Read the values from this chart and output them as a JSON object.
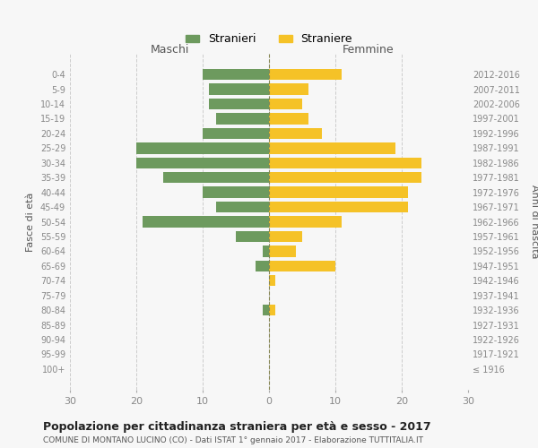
{
  "age_groups": [
    "100+",
    "95-99",
    "90-94",
    "85-89",
    "80-84",
    "75-79",
    "70-74",
    "65-69",
    "60-64",
    "55-59",
    "50-54",
    "45-49",
    "40-44",
    "35-39",
    "30-34",
    "25-29",
    "20-24",
    "15-19",
    "10-14",
    "5-9",
    "0-4"
  ],
  "birth_years": [
    "≤ 1916",
    "1917-1921",
    "1922-1926",
    "1927-1931",
    "1932-1936",
    "1937-1941",
    "1942-1946",
    "1947-1951",
    "1952-1956",
    "1957-1961",
    "1962-1966",
    "1967-1971",
    "1972-1976",
    "1977-1981",
    "1982-1986",
    "1987-1991",
    "1992-1996",
    "1997-2001",
    "2002-2006",
    "2007-2011",
    "2012-2016"
  ],
  "maschi": [
    0,
    0,
    0,
    0,
    1,
    0,
    0,
    2,
    1,
    5,
    19,
    8,
    10,
    16,
    20,
    20,
    10,
    8,
    9,
    9,
    10
  ],
  "femmine": [
    0,
    0,
    0,
    0,
    1,
    0,
    1,
    10,
    4,
    5,
    11,
    21,
    21,
    23,
    23,
    19,
    8,
    6,
    5,
    6,
    11
  ],
  "maschi_color": "#6d9a5e",
  "femmine_color": "#f5c227",
  "background_color": "#f7f7f7",
  "grid_color": "#cccccc",
  "title": "Popolazione per cittadinanza straniera per età e sesso - 2017",
  "subtitle": "COMUNE DI MONTANO LUCINO (CO) - Dati ISTAT 1° gennaio 2017 - Elaborazione TUTTITALIA.IT",
  "xlabel_left": "Maschi",
  "xlabel_right": "Femmine",
  "ylabel_left": "Fasce di età",
  "ylabel_right": "Anni di nascita",
  "legend_maschi": "Stranieri",
  "legend_femmine": "Straniere",
  "xlim": 30
}
